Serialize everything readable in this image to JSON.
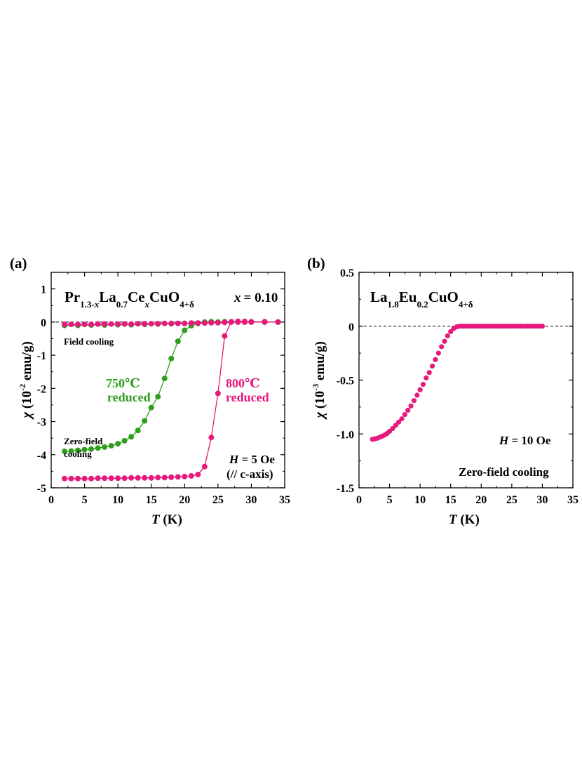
{
  "colors": {
    "green": "#2e9e1c",
    "magenta": "#e6197d",
    "black": "#000000"
  },
  "chart_data": [
    {
      "type": "line",
      "panel_label": "(a)",
      "title_parts": [
        {
          "t": "Pr",
          "s": "n"
        },
        {
          "t": "1.3-",
          "s": "sub"
        },
        {
          "t": "x",
          "s": "subi"
        },
        {
          "t": "La",
          "s": "n"
        },
        {
          "t": "0.7",
          "s": "sub"
        },
        {
          "t": "Ce",
          "s": "n"
        },
        {
          "t": "x",
          "s": "subi"
        },
        {
          "t": "CuO",
          "s": "n"
        },
        {
          "t": "4+δ",
          "s": "sub"
        }
      ],
      "x_eq_label": "x",
      "x_eq_value": "= 0.10",
      "xlabel_var": "T",
      "xlabel_unit": " (K)",
      "ylabel_var": "χ",
      "ylabel_pre": " (10",
      "ylabel_exp": "-2",
      "ylabel_post": " emu/g)",
      "xlim": [
        0,
        35
      ],
      "ylim": [
        -5,
        1.5
      ],
      "xticks": [
        0,
        5,
        10,
        15,
        20,
        25,
        30,
        35
      ],
      "yticks": [
        1,
        0,
        -1,
        -2,
        -3,
        -4,
        -5
      ],
      "ytick_labels": [
        "1",
        "0",
        "-1",
        "-2",
        "-3",
        "-4",
        "-5"
      ],
      "zero_line": true,
      "annotations": {
        "field_cooling": "Field cooling",
        "zero_field_1": "Zero-field",
        "zero_field_2": "cooling",
        "green_temp": "750℃",
        "green_red": "reduced",
        "mag_temp": "800℃",
        "mag_red": "reduced",
        "h_var": "H",
        "h_val": " = 5 Oe",
        "axis_note": "(// c-axis)"
      },
      "series": [
        {
          "name": "750℃ reduced ZFC",
          "color": "green",
          "mode": "linemarker",
          "x": [
            2,
            3,
            4,
            5,
            6,
            7,
            8,
            9,
            10,
            11,
            12,
            13,
            14,
            15,
            16,
            17,
            18,
            19,
            20,
            21,
            22,
            23,
            24,
            25,
            26,
            27,
            28,
            29,
            30,
            32,
            34
          ],
          "y": [
            -3.9,
            -3.89,
            -3.87,
            -3.85,
            -3.83,
            -3.8,
            -3.77,
            -3.73,
            -3.67,
            -3.58,
            -3.46,
            -3.27,
            -2.98,
            -2.58,
            -2.25,
            -1.7,
            -1.1,
            -0.58,
            -0.25,
            -0.11,
            -0.04,
            0.0,
            0.01,
            0.0,
            0.01,
            0.0,
            0.0,
            0.0,
            0.0,
            0.0,
            0.0
          ]
        },
        {
          "name": "800℃ reduced ZFC",
          "color": "magenta",
          "mode": "linemarker",
          "x": [
            2,
            3,
            4,
            5,
            6,
            7,
            8,
            9,
            10,
            11,
            12,
            13,
            14,
            15,
            16,
            17,
            18,
            19,
            20,
            21,
            22,
            23,
            24,
            25,
            26,
            27,
            28,
            29,
            30,
            32,
            34
          ],
          "y": [
            -4.72,
            -4.72,
            -4.72,
            -4.72,
            -4.72,
            -4.71,
            -4.71,
            -4.71,
            -4.71,
            -4.71,
            -4.7,
            -4.7,
            -4.7,
            -4.7,
            -4.69,
            -4.69,
            -4.68,
            -4.67,
            -4.66,
            -4.64,
            -4.6,
            -4.36,
            -3.48,
            -2.15,
            -0.42,
            0.01,
            0.02,
            0.02,
            0.01,
            0.01,
            0.0
          ]
        },
        {
          "name": "750℃ reduced FC",
          "color": "green",
          "mode": "linemarker",
          "x": [
            2,
            4,
            6,
            8,
            10,
            12,
            14,
            16,
            18,
            20,
            22,
            24,
            26,
            28,
            30,
            32,
            34
          ],
          "y": [
            -0.1,
            -0.1,
            -0.09,
            -0.09,
            -0.08,
            -0.08,
            -0.07,
            -0.06,
            -0.05,
            -0.04,
            -0.03,
            -0.02,
            -0.01,
            0.0,
            0.0,
            0.0,
            0.0
          ]
        },
        {
          "name": "800℃ reduced FC",
          "color": "magenta",
          "mode": "linemarker",
          "x": [
            2,
            3,
            4,
            5,
            6,
            7,
            8,
            9,
            10,
            11,
            12,
            13,
            14,
            15,
            16,
            17,
            18,
            19,
            20,
            21,
            22,
            23,
            24,
            25,
            26,
            27,
            28,
            29,
            30,
            32,
            34
          ],
          "y": [
            -0.07,
            -0.07,
            -0.07,
            -0.07,
            -0.07,
            -0.06,
            -0.06,
            -0.06,
            -0.06,
            -0.06,
            -0.06,
            -0.05,
            -0.05,
            -0.05,
            -0.05,
            -0.04,
            -0.04,
            -0.04,
            -0.04,
            -0.03,
            -0.03,
            -0.03,
            -0.02,
            -0.02,
            -0.01,
            0.0,
            0.0,
            0.0,
            0.0,
            0.0,
            0.0
          ]
        }
      ]
    },
    {
      "type": "scatter",
      "panel_label": "(b)",
      "title_parts": [
        {
          "t": "La",
          "s": "n"
        },
        {
          "t": "1.8",
          "s": "sub"
        },
        {
          "t": "Eu",
          "s": "n"
        },
        {
          "t": "0.2",
          "s": "sub"
        },
        {
          "t": "CuO",
          "s": "n"
        },
        {
          "t": "4+δ",
          "s": "sub"
        }
      ],
      "xlabel_var": "T",
      "xlabel_unit": " (K)",
      "ylabel_var": "χ",
      "ylabel_pre": " (10",
      "ylabel_exp": "-3",
      "ylabel_post": " emu/g)",
      "xlim": [
        0,
        35
      ],
      "ylim": [
        -1.5,
        0.5
      ],
      "xticks": [
        0,
        5,
        10,
        15,
        20,
        25,
        30,
        35
      ],
      "yticks": [
        0.5,
        0,
        -0.5,
        -1.0,
        -1.5
      ],
      "ytick_labels": [
        "0.5",
        "0",
        "-0.5",
        "-1.0",
        "-1.5"
      ],
      "zero_line": true,
      "annotations": {
        "h_var": "H",
        "h_val": " = 10 Oe",
        "zfc": "Zero-field cooling"
      },
      "series": [
        {
          "name": "La1.8Eu0.2CuO4+δ ZFC",
          "color": "magenta",
          "mode": "marker",
          "x": [
            2.2,
            2.6,
            3.0,
            3.4,
            3.8,
            4.2,
            4.6,
            5.0,
            5.5,
            6.0,
            6.5,
            7.0,
            7.5,
            8.0,
            8.5,
            9.0,
            9.5,
            10.0,
            10.5,
            11.0,
            11.5,
            12.0,
            12.5,
            13.0,
            13.5,
            14.0,
            14.5,
            15.0,
            15.5,
            16.0,
            16.5,
            17.0,
            17.5,
            18.0,
            18.5,
            19.0,
            19.5,
            20.0,
            20.5,
            21.0,
            21.5,
            22.0,
            22.5,
            23.0,
            23.5,
            24.0,
            24.5,
            25.0,
            25.5,
            26.0,
            26.5,
            27.0,
            27.5,
            28.0,
            28.5,
            29.0,
            29.5,
            30.0
          ],
          "y": [
            -1.05,
            -1.045,
            -1.04,
            -1.03,
            -1.02,
            -1.01,
            -0.995,
            -0.975,
            -0.95,
            -0.92,
            -0.89,
            -0.86,
            -0.82,
            -0.78,
            -0.74,
            -0.69,
            -0.64,
            -0.59,
            -0.54,
            -0.48,
            -0.43,
            -0.37,
            -0.31,
            -0.25,
            -0.19,
            -0.14,
            -0.09,
            -0.05,
            -0.02,
            -0.005,
            0.0,
            0.0,
            0.0,
            0.0,
            0.0,
            0.0,
            0.0,
            0.0,
            0.0,
            0.0,
            0.0,
            0.0,
            0.0,
            0.0,
            0.0,
            0.0,
            0.0,
            0.0,
            0.0,
            0.0,
            0.0,
            0.0,
            0.0,
            0.0,
            0.0,
            0.0,
            0.0,
            0.0
          ]
        }
      ]
    }
  ]
}
